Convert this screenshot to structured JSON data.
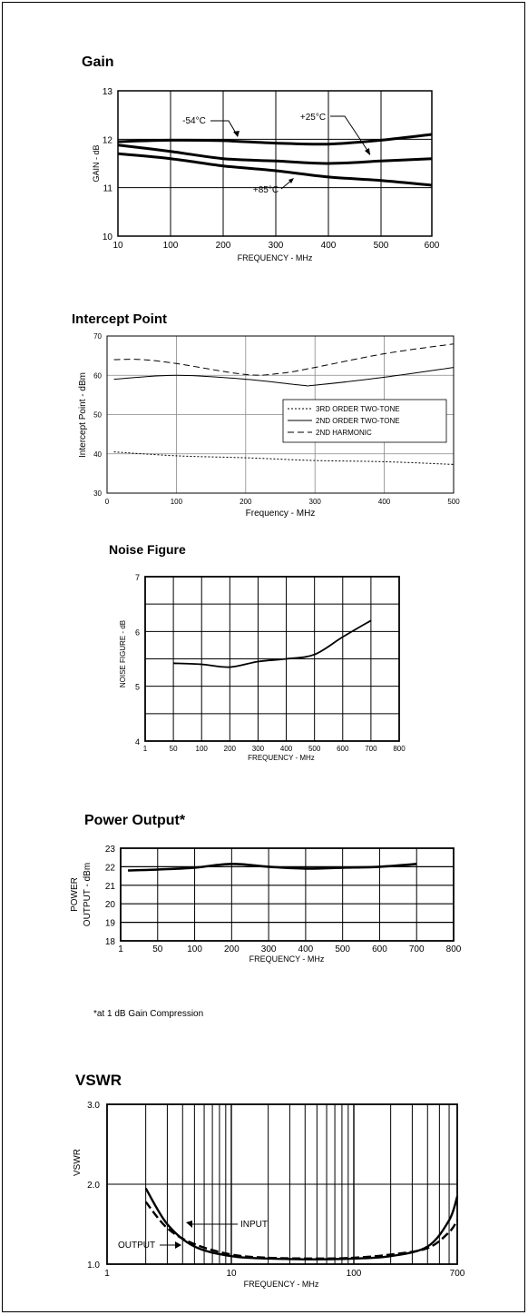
{
  "charts": {
    "gain": {
      "title": "Gain",
      "chart_data": {
        "type": "line",
        "title": "Gain",
        "xlabel": "FREQUENCY - MHz",
        "ylabel": "GAIN - dB",
        "x_ticks": [
          "10",
          "100",
          "200",
          "300",
          "400",
          "500",
          "600"
        ],
        "y_ticks": [
          "10",
          "11",
          "12",
          "13"
        ],
        "xlim": [
          10,
          600
        ],
        "ylim": [
          10,
          13
        ],
        "grid": true,
        "series": [
          {
            "name": "-54°C",
            "x": [
              10,
              100,
              200,
              300,
              400,
              500,
              600
            ],
            "values": [
              11.95,
              11.98,
              11.97,
              11.92,
              11.9,
              11.98,
              12.1
            ]
          },
          {
            "name": "+25°C",
            "x": [
              10,
              100,
              200,
              300,
              400,
              500,
              600
            ],
            "values": [
              11.88,
              11.75,
              11.6,
              11.55,
              11.5,
              11.55,
              11.6
            ]
          },
          {
            "name": "+85°C",
            "x": [
              10,
              100,
              200,
              300,
              400,
              500,
              600
            ],
            "values": [
              11.7,
              11.6,
              11.45,
              11.35,
              11.22,
              11.15,
              11.05
            ]
          }
        ],
        "annotations": [
          "-54°C",
          "+25°C",
          "+85°C"
        ]
      }
    },
    "intercept": {
      "title": "Intercept Point",
      "chart_data": {
        "type": "line",
        "title": "Intercept Point",
        "xlabel": "Frequency - MHz",
        "ylabel": "Intercept Point - dBm",
        "x_ticks": [
          "0",
          "100",
          "200",
          "300",
          "400",
          "500"
        ],
        "y_ticks": [
          "30",
          "40",
          "50",
          "60",
          "70"
        ],
        "xlim": [
          0,
          500
        ],
        "ylim": [
          30,
          70
        ],
        "grid": true,
        "legend_position": "center-right",
        "series": [
          {
            "name": "3RD ORDER TWO-TONE",
            "style": "dotted",
            "x": [
              10,
              100,
              200,
              300,
              400,
              500
            ],
            "values": [
              40.5,
              39.5,
              39,
              38.3,
              38,
              37.3
            ]
          },
          {
            "name": "2ND ORDER TWO-TONE",
            "style": "solid",
            "x": [
              10,
              100,
              200,
              280,
              300,
              400,
              500
            ],
            "values": [
              59,
              60,
              59,
              57.5,
              57.5,
              59.5,
              62
            ]
          },
          {
            "name": "2ND HARMONIC",
            "style": "dashed",
            "x": [
              10,
              50,
              100,
              200,
              250,
              300,
              400,
              500
            ],
            "values": [
              64,
              64,
              63,
              60.2,
              60.5,
              62,
              65.5,
              68
            ]
          }
        ]
      }
    },
    "noise": {
      "title": "Noise Figure",
      "chart_data": {
        "type": "line",
        "title": "Noise Figure",
        "xlabel": "FREQUENCY - MHz",
        "ylabel": "NOISE FIGURE - dB",
        "x_ticks": [
          "1",
          "50",
          "100",
          "200",
          "300",
          "400",
          "500",
          "600",
          "700",
          "800"
        ],
        "y_ticks": [
          "4",
          "5",
          "6",
          "7"
        ],
        "ylim": [
          4,
          7
        ],
        "grid": true,
        "series": [
          {
            "x": [
              "50",
              "100",
              "200",
              "300",
              "400",
              "500",
              "600",
              "700"
            ],
            "values": [
              5.42,
              5.4,
              5.35,
              5.45,
              5.5,
              5.58,
              5.9,
              6.2
            ]
          }
        ]
      }
    },
    "power": {
      "title": "Power Output*",
      "footnote": "*at 1 dB Gain Compression",
      "chart_data": {
        "type": "line",
        "title": "Power Output*",
        "xlabel": "FREQUENCY - MHz",
        "ylabel": "POWER OUTPUT - dBm",
        "x_ticks": [
          "1",
          "50",
          "100",
          "200",
          "300",
          "400",
          "500",
          "600",
          "700",
          "800"
        ],
        "y_ticks": [
          "18",
          "19",
          "20",
          "21",
          "22",
          "23"
        ],
        "ylim": [
          18,
          23
        ],
        "grid": true,
        "series": [
          {
            "x": [
              "1",
              "50",
              "100",
              "200",
              "300",
              "400",
              "500",
              "600",
              "700"
            ],
            "values": [
              21.8,
              21.85,
              21.95,
              22.15,
              22.0,
              21.9,
              21.95,
              22.0,
              22.15
            ]
          }
        ]
      }
    },
    "vswr": {
      "title": "VSWR",
      "chart_data": {
        "type": "line",
        "title": "VSWR",
        "xlabel": "FREQUENCY - MHz",
        "ylabel": "VSWR",
        "x_ticks": [
          "1",
          "10",
          "100",
          "700"
        ],
        "y_ticks": [
          "1.0",
          "2.0",
          "3.0"
        ],
        "xscale": "log",
        "xlim": [
          1,
          700
        ],
        "ylim": [
          1.0,
          3.0
        ],
        "grid": true,
        "series": [
          {
            "name": "INPUT",
            "x": [
              2,
              3,
              5,
              10,
              20,
              50,
              100,
              200,
              400,
              600,
              700
            ],
            "values": [
              1.78,
              1.45,
              1.25,
              1.12,
              1.08,
              1.07,
              1.08,
              1.12,
              1.2,
              1.4,
              1.55
            ]
          },
          {
            "name": "OUTPUT",
            "x": [
              2,
              3,
              5,
              10,
              20,
              50,
              100,
              200,
              400,
              600,
              700
            ],
            "values": [
              1.95,
              1.5,
              1.22,
              1.1,
              1.07,
              1.06,
              1.07,
              1.1,
              1.22,
              1.55,
              1.85
            ]
          }
        ],
        "annotations": [
          "INPUT",
          "OUTPUT"
        ]
      }
    }
  }
}
